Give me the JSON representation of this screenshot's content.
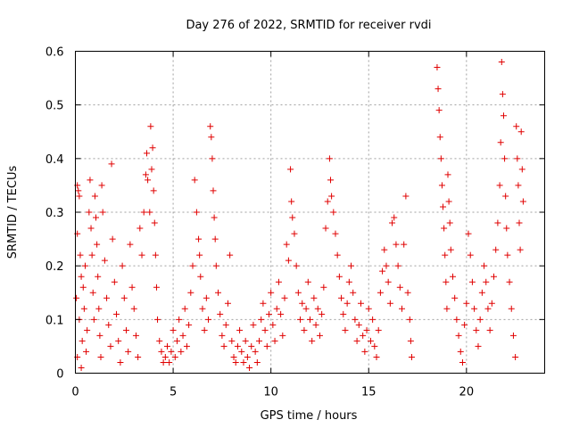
{
  "chart_data": {
    "type": "scatter",
    "title": "Day 276 of 2022, SRMTID for receiver rvdi",
    "xlabel": "GPS time / hours",
    "ylabel": "SRMTID / TECUs",
    "xlim": [
      0,
      24
    ],
    "ylim": [
      0,
      0.6
    ],
    "xticks": [
      0,
      5,
      10,
      15,
      20
    ],
    "xtick_labels": [
      "0",
      "5",
      "10",
      "15",
      "20"
    ],
    "yticks": [
      0,
      0.1,
      0.2,
      0.3,
      0.4,
      0.5,
      0.6
    ],
    "ytick_labels": [
      "0",
      "0.1",
      "0.2",
      "0.3",
      "0.4",
      "0.5",
      "0.6"
    ],
    "grid": true,
    "marker": "+",
    "color": "#e00000",
    "series": [
      {
        "name": "SRMTID",
        "points": [
          [
            0.1,
            0.35
          ],
          [
            0.15,
            0.34
          ],
          [
            0.2,
            0.33
          ],
          [
            0.1,
            0.26
          ],
          [
            0.25,
            0.22
          ],
          [
            0.3,
            0.18
          ],
          [
            0.05,
            0.14
          ],
          [
            0.2,
            0.1
          ],
          [
            0.35,
            0.06
          ],
          [
            0.1,
            0.03
          ],
          [
            0.3,
            0.01
          ],
          [
            0.4,
            0.16
          ],
          [
            0.5,
            0.2
          ],
          [
            0.45,
            0.12
          ],
          [
            0.6,
            0.08
          ],
          [
            0.55,
            0.04
          ],
          [
            0.7,
            0.3
          ],
          [
            0.75,
            0.36
          ],
          [
            0.8,
            0.27
          ],
          [
            0.85,
            0.22
          ],
          [
            0.9,
            0.15
          ],
          [
            0.95,
            0.1
          ],
          [
            1.0,
            0.33
          ],
          [
            1.05,
            0.29
          ],
          [
            1.1,
            0.24
          ],
          [
            1.15,
            0.18
          ],
          [
            1.2,
            0.12
          ],
          [
            1.25,
            0.07
          ],
          [
            1.3,
            0.03
          ],
          [
            1.35,
            0.35
          ],
          [
            1.4,
            0.3
          ],
          [
            1.5,
            0.21
          ],
          [
            1.6,
            0.14
          ],
          [
            1.7,
            0.09
          ],
          [
            1.8,
            0.05
          ],
          [
            1.85,
            0.39
          ],
          [
            1.9,
            0.25
          ],
          [
            2.0,
            0.17
          ],
          [
            2.1,
            0.11
          ],
          [
            2.2,
            0.06
          ],
          [
            2.3,
            0.02
          ],
          [
            2.4,
            0.2
          ],
          [
            2.5,
            0.14
          ],
          [
            2.6,
            0.08
          ],
          [
            2.7,
            0.04
          ],
          [
            2.8,
            0.24
          ],
          [
            2.9,
            0.16
          ],
          [
            3.0,
            0.12
          ],
          [
            3.1,
            0.07
          ],
          [
            3.2,
            0.03
          ],
          [
            3.3,
            0.27
          ],
          [
            3.4,
            0.22
          ],
          [
            3.5,
            0.3
          ],
          [
            3.6,
            0.37
          ],
          [
            3.65,
            0.41
          ],
          [
            3.7,
            0.36
          ],
          [
            3.8,
            0.3
          ],
          [
            3.85,
            0.46
          ],
          [
            3.9,
            0.38
          ],
          [
            3.95,
            0.42
          ],
          [
            4.0,
            0.34
          ],
          [
            4.05,
            0.28
          ],
          [
            4.1,
            0.22
          ],
          [
            4.15,
            0.16
          ],
          [
            4.2,
            0.1
          ],
          [
            4.3,
            0.06
          ],
          [
            4.4,
            0.04
          ],
          [
            4.5,
            0.02
          ],
          [
            4.6,
            0.03
          ],
          [
            4.7,
            0.05
          ],
          [
            4.8,
            0.02
          ],
          [
            4.9,
            0.04
          ],
          [
            5.0,
            0.08
          ],
          [
            5.1,
            0.03
          ],
          [
            5.2,
            0.06
          ],
          [
            5.3,
            0.1
          ],
          [
            5.4,
            0.04
          ],
          [
            5.5,
            0.07
          ],
          [
            5.6,
            0.12
          ],
          [
            5.7,
            0.05
          ],
          [
            5.8,
            0.09
          ],
          [
            5.9,
            0.15
          ],
          [
            6.0,
            0.2
          ],
          [
            6.1,
            0.36
          ],
          [
            6.2,
            0.3
          ],
          [
            6.3,
            0.25
          ],
          [
            6.35,
            0.22
          ],
          [
            6.4,
            0.18
          ],
          [
            6.5,
            0.12
          ],
          [
            6.6,
            0.08
          ],
          [
            6.7,
            0.14
          ],
          [
            6.8,
            0.1
          ],
          [
            6.9,
            0.46
          ],
          [
            6.95,
            0.44
          ],
          [
            7.0,
            0.4
          ],
          [
            7.05,
            0.34
          ],
          [
            7.1,
            0.29
          ],
          [
            7.15,
            0.25
          ],
          [
            7.2,
            0.2
          ],
          [
            7.3,
            0.15
          ],
          [
            7.4,
            0.11
          ],
          [
            7.5,
            0.07
          ],
          [
            7.6,
            0.05
          ],
          [
            7.7,
            0.09
          ],
          [
            7.8,
            0.13
          ],
          [
            7.9,
            0.22
          ],
          [
            8.0,
            0.06
          ],
          [
            8.1,
            0.03
          ],
          [
            8.2,
            0.02
          ],
          [
            8.3,
            0.05
          ],
          [
            8.4,
            0.08
          ],
          [
            8.5,
            0.04
          ],
          [
            8.6,
            0.02
          ],
          [
            8.7,
            0.06
          ],
          [
            8.8,
            0.03
          ],
          [
            8.9,
            0.01
          ],
          [
            9.0,
            0.05
          ],
          [
            9.1,
            0.09
          ],
          [
            9.2,
            0.04
          ],
          [
            9.3,
            0.02
          ],
          [
            9.4,
            0.06
          ],
          [
            9.5,
            0.1
          ],
          [
            9.6,
            0.13
          ],
          [
            9.7,
            0.08
          ],
          [
            9.8,
            0.05
          ],
          [
            9.9,
            0.11
          ],
          [
            10.0,
            0.15
          ],
          [
            10.1,
            0.09
          ],
          [
            10.2,
            0.06
          ],
          [
            10.3,
            0.12
          ],
          [
            10.4,
            0.17
          ],
          [
            10.5,
            0.11
          ],
          [
            10.6,
            0.07
          ],
          [
            10.7,
            0.14
          ],
          [
            10.8,
            0.24
          ],
          [
            10.9,
            0.21
          ],
          [
            11.0,
            0.38
          ],
          [
            11.05,
            0.32
          ],
          [
            11.1,
            0.29
          ],
          [
            11.2,
            0.26
          ],
          [
            11.3,
            0.2
          ],
          [
            11.4,
            0.15
          ],
          [
            11.5,
            0.1
          ],
          [
            11.6,
            0.13
          ],
          [
            11.7,
            0.08
          ],
          [
            11.8,
            0.12
          ],
          [
            11.9,
            0.17
          ],
          [
            12.0,
            0.1
          ],
          [
            12.1,
            0.06
          ],
          [
            12.2,
            0.14
          ],
          [
            12.3,
            0.09
          ],
          [
            12.4,
            0.12
          ],
          [
            12.5,
            0.07
          ],
          [
            12.6,
            0.11
          ],
          [
            12.7,
            0.16
          ],
          [
            12.8,
            0.27
          ],
          [
            12.9,
            0.32
          ],
          [
            13.0,
            0.4
          ],
          [
            13.05,
            0.36
          ],
          [
            13.1,
            0.33
          ],
          [
            13.2,
            0.3
          ],
          [
            13.3,
            0.26
          ],
          [
            13.4,
            0.22
          ],
          [
            13.5,
            0.18
          ],
          [
            13.6,
            0.14
          ],
          [
            13.7,
            0.11
          ],
          [
            13.8,
            0.08
          ],
          [
            13.9,
            0.13
          ],
          [
            14.0,
            0.17
          ],
          [
            14.1,
            0.2
          ],
          [
            14.2,
            0.15
          ],
          [
            14.3,
            0.1
          ],
          [
            14.4,
            0.06
          ],
          [
            14.5,
            0.09
          ],
          [
            14.6,
            0.13
          ],
          [
            14.7,
            0.07
          ],
          [
            14.8,
            0.04
          ],
          [
            14.9,
            0.08
          ],
          [
            15.0,
            0.12
          ],
          [
            15.1,
            0.06
          ],
          [
            15.2,
            0.1
          ],
          [
            15.3,
            0.05
          ],
          [
            15.4,
            0.03
          ],
          [
            15.5,
            0.08
          ],
          [
            15.6,
            0.15
          ],
          [
            15.7,
            0.19
          ],
          [
            15.8,
            0.23
          ],
          [
            15.9,
            0.2
          ],
          [
            16.0,
            0.17
          ],
          [
            16.1,
            0.13
          ],
          [
            16.2,
            0.28
          ],
          [
            16.3,
            0.29
          ],
          [
            16.4,
            0.24
          ],
          [
            16.5,
            0.2
          ],
          [
            16.6,
            0.16
          ],
          [
            16.7,
            0.12
          ],
          [
            16.8,
            0.24
          ],
          [
            16.9,
            0.33
          ],
          [
            17.0,
            0.15
          ],
          [
            17.1,
            0.1
          ],
          [
            17.15,
            0.06
          ],
          [
            17.2,
            0.03
          ],
          [
            18.5,
            0.57
          ],
          [
            18.55,
            0.53
          ],
          [
            18.6,
            0.49
          ],
          [
            18.65,
            0.44
          ],
          [
            18.7,
            0.4
          ],
          [
            18.75,
            0.35
          ],
          [
            18.8,
            0.31
          ],
          [
            18.85,
            0.27
          ],
          [
            18.9,
            0.22
          ],
          [
            18.95,
            0.17
          ],
          [
            19.0,
            0.12
          ],
          [
            19.05,
            0.37
          ],
          [
            19.1,
            0.32
          ],
          [
            19.15,
            0.28
          ],
          [
            19.2,
            0.23
          ],
          [
            19.3,
            0.18
          ],
          [
            19.4,
            0.14
          ],
          [
            19.5,
            0.1
          ],
          [
            19.6,
            0.07
          ],
          [
            19.7,
            0.04
          ],
          [
            19.8,
            0.02
          ],
          [
            19.9,
            0.09
          ],
          [
            20.0,
            0.13
          ],
          [
            20.1,
            0.26
          ],
          [
            20.2,
            0.22
          ],
          [
            20.3,
            0.17
          ],
          [
            20.4,
            0.12
          ],
          [
            20.5,
            0.08
          ],
          [
            20.6,
            0.05
          ],
          [
            20.7,
            0.1
          ],
          [
            20.8,
            0.15
          ],
          [
            20.9,
            0.2
          ],
          [
            21.0,
            0.17
          ],
          [
            21.1,
            0.12
          ],
          [
            21.2,
            0.08
          ],
          [
            21.3,
            0.13
          ],
          [
            21.4,
            0.18
          ],
          [
            21.5,
            0.23
          ],
          [
            21.6,
            0.28
          ],
          [
            21.7,
            0.35
          ],
          [
            21.75,
            0.43
          ],
          [
            21.8,
            0.58
          ],
          [
            21.85,
            0.52
          ],
          [
            21.9,
            0.48
          ],
          [
            21.95,
            0.4
          ],
          [
            22.0,
            0.33
          ],
          [
            22.05,
            0.27
          ],
          [
            22.1,
            0.22
          ],
          [
            22.2,
            0.17
          ],
          [
            22.3,
            0.12
          ],
          [
            22.4,
            0.07
          ],
          [
            22.5,
            0.03
          ],
          [
            22.55,
            0.46
          ],
          [
            22.6,
            0.4
          ],
          [
            22.65,
            0.35
          ],
          [
            22.7,
            0.28
          ],
          [
            22.75,
            0.23
          ],
          [
            22.8,
            0.45
          ],
          [
            22.85,
            0.38
          ],
          [
            22.9,
            0.32
          ]
        ]
      }
    ]
  }
}
